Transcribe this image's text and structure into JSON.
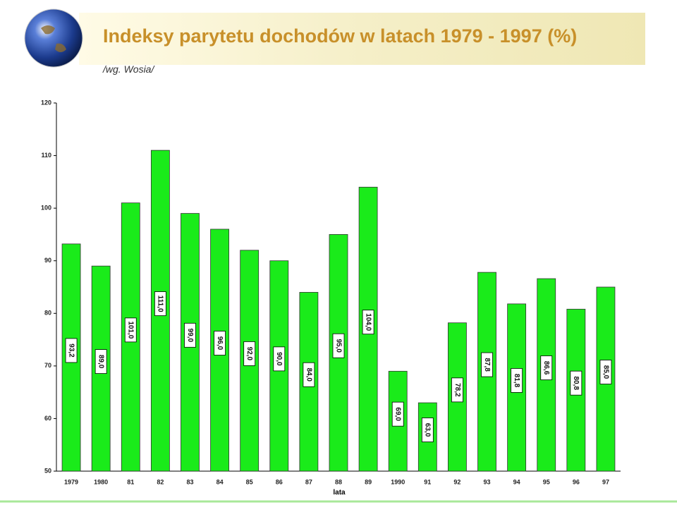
{
  "chart_data": {
    "type": "bar",
    "title": "Indeksy parytetu dochodów w latach 1979 - 1997 (%)",
    "subtitle": "/wg. Wosia/",
    "x_label": "lata",
    "categories": [
      "1979",
      "1980",
      "81",
      "82",
      "83",
      "84",
      "85",
      "86",
      "87",
      "88",
      "89",
      "1990",
      "91",
      "92",
      "93",
      "94",
      "95",
      "96",
      "97"
    ],
    "values": [
      93.2,
      89.0,
      101.0,
      111.0,
      99.0,
      96.0,
      92.0,
      90.0,
      84.0,
      95.0,
      104.0,
      69.0,
      63.0,
      78.2,
      87.8,
      81.8,
      86.6,
      80.8,
      85.0
    ],
    "value_labels": [
      "93,2",
      "89,0",
      "101,0",
      "111,0",
      "99,0",
      "96,0",
      "92,0",
      "90,0",
      "84,0",
      "95,0",
      "104,0",
      "69,0",
      "63,0",
      "78,2",
      "87,8",
      "81,8",
      "86,6",
      "80,8",
      "85,0"
    ],
    "color": "#1aeb1a",
    "ylim": [
      50,
      120
    ],
    "yticks": [
      50,
      60,
      70,
      80,
      90,
      100,
      110,
      120
    ],
    "grid": false
  }
}
